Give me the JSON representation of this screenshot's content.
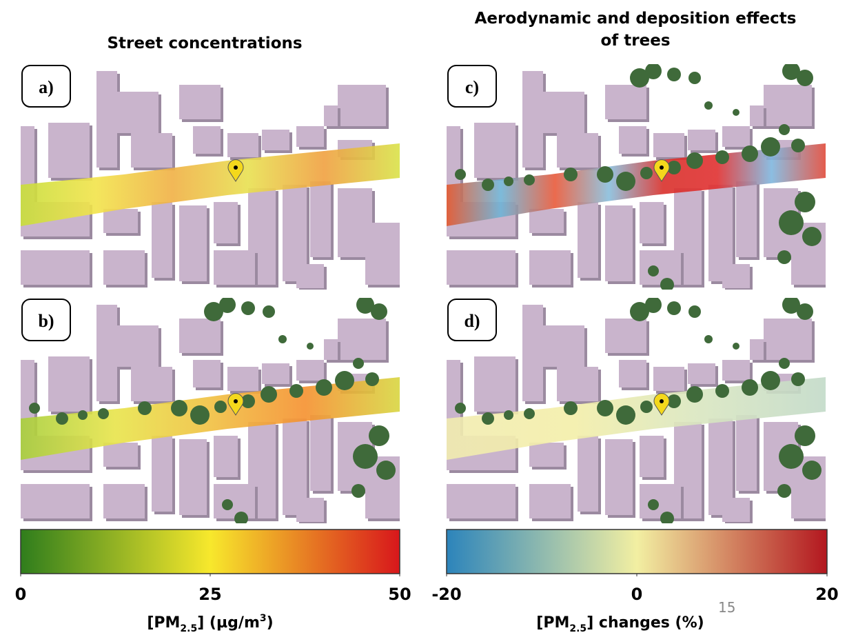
{
  "left": {
    "title": "Street concentrations",
    "panels": [
      "a)",
      "b)"
    ],
    "colorbar": {
      "lim": [
        0,
        50
      ],
      "ticks": [
        0,
        25,
        50
      ],
      "colors": [
        "#2f7d1c",
        "#f7e82c",
        "#d8171b"
      ],
      "label": [
        "[PM",
        "2.5",
        "] (µg/m",
        "3",
        ")"
      ]
    }
  },
  "right": {
    "title": [
      "Aerodynamic and deposition effects",
      "of trees"
    ],
    "panels": [
      "c)",
      "d)"
    ],
    "colorbar": {
      "lim": [
        -20,
        20
      ],
      "ticks": [
        -20,
        0,
        20
      ],
      "colors": [
        "#2c84bb",
        "#f2efa2",
        "#b3171f"
      ],
      "label": [
        "[PM",
        "2.5",
        "] changes (%)"
      ]
    }
  },
  "page_number": "15"
}
